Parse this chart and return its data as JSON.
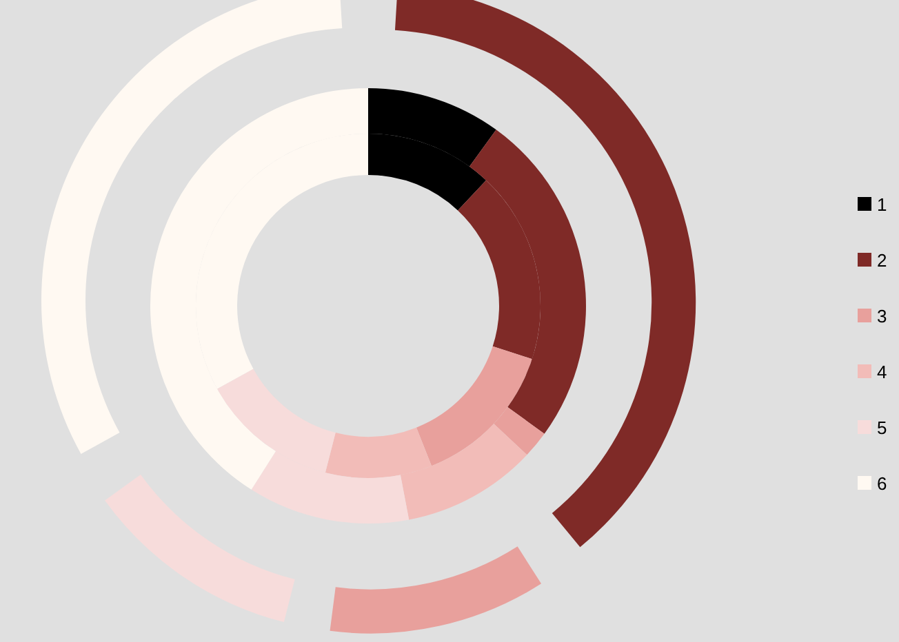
{
  "chart_data": {
    "type": "donut",
    "categories": [
      "1",
      "2",
      "3",
      "4",
      "5",
      "6"
    ],
    "colors": [
      "#000000",
      "#7f2a27",
      "#e8a09c",
      "#f2bcb8",
      "#f7dcdb",
      "#fff9f2"
    ],
    "series": [
      {
        "values": [
          12,
          18,
          14,
          10,
          13,
          33
        ]
      },
      {
        "values": [
          10,
          25,
          2,
          10,
          12,
          41
        ]
      },
      {
        "values": [
          0,
          40,
          13,
          0,
          13,
          34
        ]
      }
    ],
    "legend": "right"
  }
}
